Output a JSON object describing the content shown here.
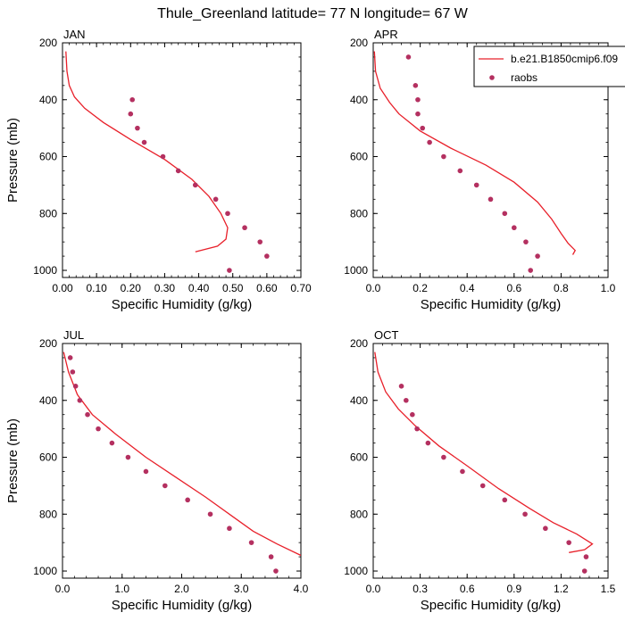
{
  "title": "Thule_Greenland  latitude= 77 N longitude= 67 W",
  "legend": {
    "model_label": "b.e21.B1850cmip6.f09",
    "obs_label": "raobs",
    "model_color": "#e8202a",
    "obs_color": "#b43060"
  },
  "chart_data": [
    {
      "type": "line",
      "title": "JAN",
      "xlabel": "Specific Humidity (g/kg)",
      "ylabel": "Pressure (mb)",
      "xlim": [
        0,
        0.7
      ],
      "ylim": [
        200,
        1025
      ],
      "y_reversed": true,
      "xticks": [
        "0.00",
        "0.10",
        "0.20",
        "0.30",
        "0.40",
        "0.50",
        "0.60",
        "0.70"
      ],
      "yticks": [
        "200",
        "400",
        "600",
        "800",
        "1000"
      ],
      "series": [
        {
          "kind": "line",
          "points": [
            [
              0.01,
              230
            ],
            [
              0.013,
              300
            ],
            [
              0.02,
              350
            ],
            [
              0.035,
              390
            ],
            [
              0.065,
              430
            ],
            [
              0.12,
              480
            ],
            [
              0.2,
              540
            ],
            [
              0.3,
              610
            ],
            [
              0.38,
              680
            ],
            [
              0.43,
              740
            ],
            [
              0.465,
              800
            ],
            [
              0.485,
              850
            ],
            [
              0.48,
              890
            ],
            [
              0.455,
              915
            ],
            [
              0.39,
              935
            ]
          ]
        },
        {
          "kind": "scatter",
          "points": [
            [
              0.205,
              400
            ],
            [
              0.2,
              450
            ],
            [
              0.22,
              500
            ],
            [
              0.24,
              550
            ],
            [
              0.295,
              600
            ],
            [
              0.34,
              650
            ],
            [
              0.39,
              700
            ],
            [
              0.45,
              750
            ],
            [
              0.485,
              800
            ],
            [
              0.535,
              850
            ],
            [
              0.58,
              900
            ],
            [
              0.6,
              950
            ],
            [
              0.49,
              1000
            ]
          ]
        }
      ]
    },
    {
      "type": "line",
      "title": "APR",
      "xlabel": "Specific Humidity (g/kg)",
      "ylabel": "",
      "xlim": [
        0,
        1.0
      ],
      "ylim": [
        200,
        1025
      ],
      "y_reversed": true,
      "xticks": [
        "0.0",
        "0.2",
        "0.4",
        "0.6",
        "0.8",
        "1.0"
      ],
      "yticks": [
        "200",
        "400",
        "600",
        "800",
        "1000"
      ],
      "series": [
        {
          "kind": "line",
          "points": [
            [
              0.005,
              230
            ],
            [
              0.01,
              300
            ],
            [
              0.03,
              360
            ],
            [
              0.07,
              410
            ],
            [
              0.11,
              450
            ],
            [
              0.2,
              510
            ],
            [
              0.33,
              570
            ],
            [
              0.48,
              630
            ],
            [
              0.6,
              690
            ],
            [
              0.7,
              760
            ],
            [
              0.76,
              820
            ],
            [
              0.8,
              870
            ],
            [
              0.83,
              905
            ],
            [
              0.86,
              930
            ],
            [
              0.85,
              945
            ]
          ]
        },
        {
          "kind": "scatter",
          "points": [
            [
              0.15,
              250
            ],
            [
              0.18,
              350
            ],
            [
              0.19,
              400
            ],
            [
              0.19,
              450
            ],
            [
              0.21,
              500
            ],
            [
              0.24,
              550
            ],
            [
              0.3,
              600
            ],
            [
              0.37,
              650
            ],
            [
              0.44,
              700
            ],
            [
              0.5,
              750
            ],
            [
              0.56,
              800
            ],
            [
              0.6,
              850
            ],
            [
              0.65,
              900
            ],
            [
              0.7,
              950
            ],
            [
              0.67,
              1000
            ]
          ]
        }
      ]
    },
    {
      "type": "line",
      "title": "JUL",
      "xlabel": "Specific Humidity (g/kg)",
      "ylabel": "Pressure (mb)",
      "xlim": [
        0,
        4.0
      ],
      "ylim": [
        200,
        1025
      ],
      "y_reversed": true,
      "xticks": [
        "0.0",
        "1.0",
        "2.0",
        "3.0",
        "4.0"
      ],
      "yticks": [
        "200",
        "400",
        "600",
        "800",
        "1000"
      ],
      "series": [
        {
          "kind": "line",
          "points": [
            [
              0.02,
              230
            ],
            [
              0.1,
              300
            ],
            [
              0.25,
              380
            ],
            [
              0.5,
              450
            ],
            [
              0.9,
              520
            ],
            [
              1.4,
              600
            ],
            [
              1.9,
              670
            ],
            [
              2.4,
              740
            ],
            [
              2.8,
              800
            ],
            [
              3.2,
              860
            ],
            [
              3.6,
              905
            ],
            [
              4.0,
              945
            ]
          ]
        },
        {
          "kind": "scatter",
          "points": [
            [
              0.13,
              250
            ],
            [
              0.17,
              300
            ],
            [
              0.22,
              350
            ],
            [
              0.29,
              400
            ],
            [
              0.42,
              450
            ],
            [
              0.6,
              500
            ],
            [
              0.83,
              550
            ],
            [
              1.1,
              600
            ],
            [
              1.4,
              650
            ],
            [
              1.72,
              700
            ],
            [
              2.1,
              750
            ],
            [
              2.48,
              800
            ],
            [
              2.8,
              850
            ],
            [
              3.17,
              900
            ],
            [
              3.5,
              950
            ],
            [
              3.58,
              1000
            ]
          ]
        }
      ]
    },
    {
      "type": "line",
      "title": "OCT",
      "xlabel": "Specific Humidity (g/kg)",
      "ylabel": "",
      "xlim": [
        0,
        1.5
      ],
      "ylim": [
        200,
        1025
      ],
      "y_reversed": true,
      "xticks": [
        "0.0",
        "0.3",
        "0.6",
        "0.9",
        "1.2",
        "1.5"
      ],
      "yticks": [
        "200",
        "400",
        "600",
        "800",
        "1000"
      ],
      "series": [
        {
          "kind": "line",
          "points": [
            [
              0.01,
              230
            ],
            [
              0.03,
              300
            ],
            [
              0.08,
              370
            ],
            [
              0.16,
              430
            ],
            [
              0.27,
              490
            ],
            [
              0.42,
              560
            ],
            [
              0.6,
              630
            ],
            [
              0.8,
              710
            ],
            [
              1.0,
              780
            ],
            [
              1.15,
              830
            ],
            [
              1.3,
              870
            ],
            [
              1.4,
              905
            ],
            [
              1.35,
              925
            ],
            [
              1.25,
              935
            ]
          ]
        },
        {
          "kind": "scatter",
          "points": [
            [
              0.18,
              350
            ],
            [
              0.21,
              400
            ],
            [
              0.25,
              450
            ],
            [
              0.28,
              500
            ],
            [
              0.35,
              550
            ],
            [
              0.45,
              600
            ],
            [
              0.57,
              650
            ],
            [
              0.7,
              700
            ],
            [
              0.84,
              750
            ],
            [
              0.97,
              800
            ],
            [
              1.1,
              850
            ],
            [
              1.25,
              900
            ],
            [
              1.36,
              950
            ],
            [
              1.35,
              1000
            ]
          ]
        }
      ]
    }
  ]
}
